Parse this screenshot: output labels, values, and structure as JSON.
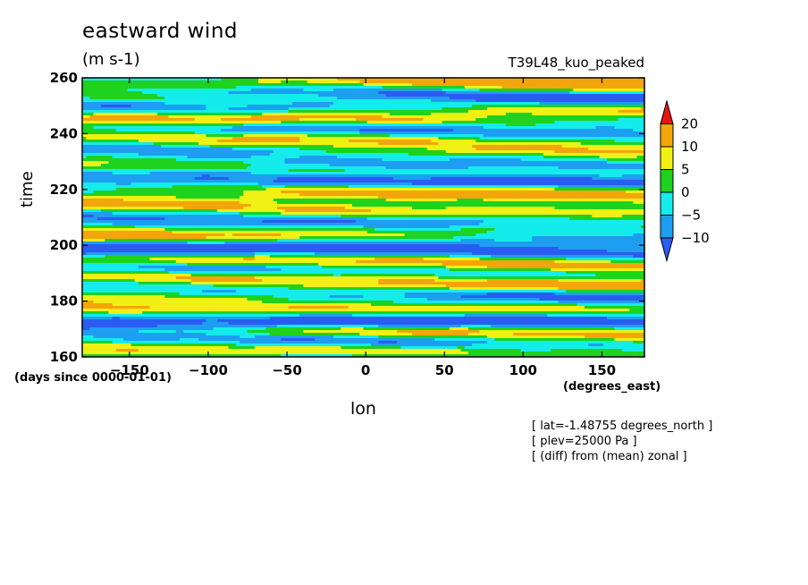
{
  "chart_data": {
    "type": "heatmap",
    "title": "eastward wind",
    "units": "(m s-1)",
    "run_label": "T39L48_kuo_peaked",
    "xlabel": "lon",
    "x_units": "(degrees_east)",
    "ylabel": "time",
    "y_units": "(days since 0000-01-01)",
    "xlim": [
      -180,
      177
    ],
    "ylim": [
      160,
      260
    ],
    "x_ticks": [
      -150,
      -100,
      -50,
      0,
      50,
      100,
      150
    ],
    "y_ticks": [
      160,
      180,
      200,
      220,
      240,
      260
    ],
    "colorbar": {
      "levels": [
        -10,
        -5,
        0,
        5,
        10,
        20
      ],
      "labels": [
        "20",
        "10",
        "5",
        "0",
        "−5",
        "−10"
      ],
      "colors": [
        "#2a5cf2",
        "#1e9ef0",
        "#14ecec",
        "#1ed21e",
        "#f0f014",
        "#f3a50c",
        "#e81414"
      ],
      "extend": "both"
    },
    "annotations": [
      "[ lat=-1.48755 degrees_north ]",
      "[ plev=25000 Pa ]",
      "[ (diff) from (mean) zonal ]"
    ]
  }
}
